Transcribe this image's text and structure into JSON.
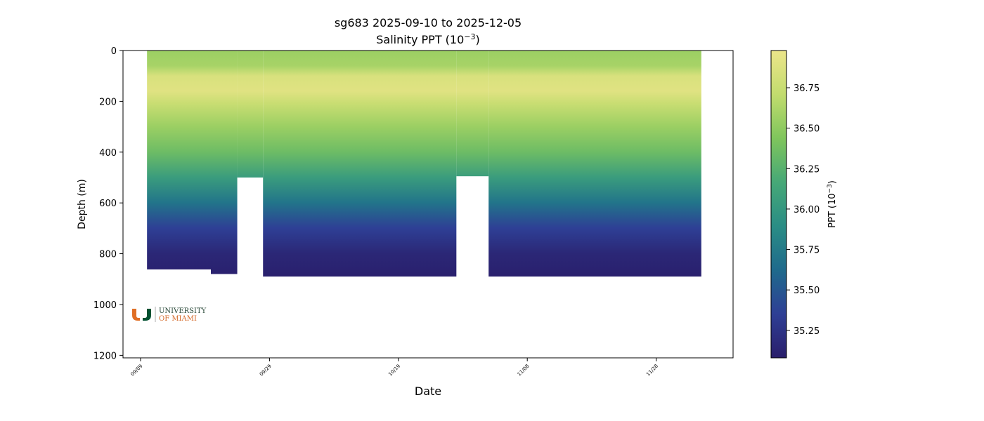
{
  "chart_data": {
    "type": "heatmap",
    "title": "sg683 2025-09-10 to 2025-12-05",
    "subtitle_prefix": "Salinity PPT (10",
    "subtitle_exp": "−3",
    "subtitle_suffix": ")",
    "xlabel": "Date",
    "ylabel": "Depth (m)",
    "colorbar_label_prefix": "PPT (10",
    "colorbar_label_exp": "−3",
    "colorbar_label_suffix": ")",
    "x_ticks": [
      "09/09",
      "09/29",
      "10/19",
      "11/08",
      "11/28"
    ],
    "y_ticks": [
      "0",
      "200",
      "400",
      "600",
      "800",
      "1000",
      "1200"
    ],
    "y_range": [
      0,
      1210
    ],
    "y_inverted": true,
    "colorbar_ticks": [
      "35.25",
      "35.50",
      "35.75",
      "36.00",
      "36.25",
      "36.50",
      "36.75"
    ],
    "colorbar_range": [
      35.08,
      36.98
    ],
    "colormap": [
      "#2a1e6b",
      "#2e3f95",
      "#1f6a8c",
      "#2a8d85",
      "#46a877",
      "#7fc55c",
      "#c2dc6e",
      "#ece58a"
    ],
    "salinity_profile": [
      {
        "depth": 0,
        "value": 36.55
      },
      {
        "depth": 60,
        "value": 36.6
      },
      {
        "depth": 100,
        "value": 36.85
      },
      {
        "depth": 160,
        "value": 36.9
      },
      {
        "depth": 210,
        "value": 36.75
      },
      {
        "depth": 300,
        "value": 36.55
      },
      {
        "depth": 400,
        "value": 36.35
      },
      {
        "depth": 500,
        "value": 36.05
      },
      {
        "depth": 600,
        "value": 35.7
      },
      {
        "depth": 700,
        "value": 35.35
      },
      {
        "depth": 800,
        "value": 35.15
      },
      {
        "depth": 890,
        "value": 35.1
      }
    ],
    "coverage_segments": [
      {
        "start_date": "2025-09-10",
        "end_date": "2025-09-24",
        "max_depth": 880
      },
      {
        "start_date": "2025-09-24",
        "end_date": "2025-09-28",
        "max_depth": 500
      },
      {
        "start_date": "2025-09-28",
        "end_date": "2025-10-28",
        "max_depth": 890
      },
      {
        "start_date": "2025-10-28",
        "end_date": "2025-11-02",
        "max_depth": 495
      },
      {
        "start_date": "2025-11-02",
        "end_date": "2025-12-05",
        "max_depth": 890
      }
    ]
  },
  "logo": {
    "line1": "UNIVERSITY",
    "line2": "OF MIAMI"
  },
  "colors": {
    "logo_orange": "#e06f26",
    "logo_green": "#005030"
  }
}
